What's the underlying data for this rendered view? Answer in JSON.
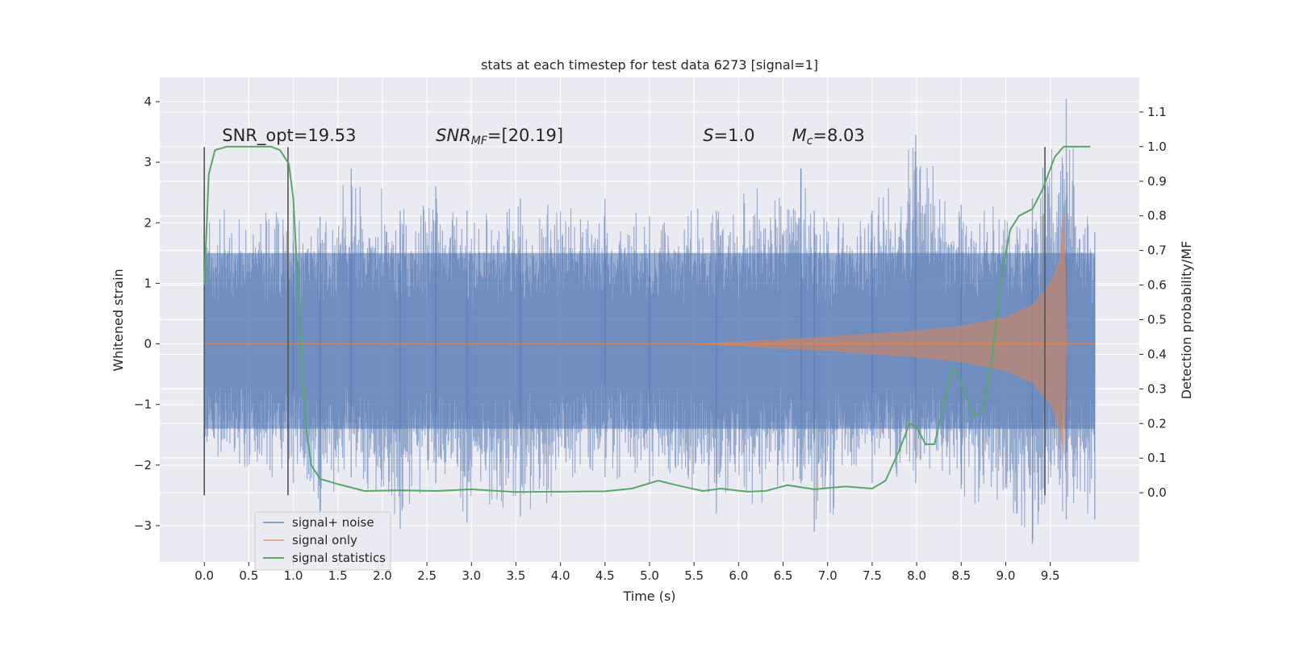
{
  "chart_data": {
    "type": "line",
    "title": "stats at each timestep for test data 6273 [signal=1]",
    "xlabel": "Time (s)",
    "ylabel": "Whitened strain",
    "y2label": "Detection probability/MF",
    "xlim": [
      -0.5,
      10.5
    ],
    "ylim": [
      -3.6,
      4.4
    ],
    "y2lim": [
      -0.2,
      1.2
    ],
    "xticks": [
      0.0,
      0.5,
      1.0,
      1.5,
      2.0,
      2.5,
      3.0,
      3.5,
      4.0,
      4.5,
      5.0,
      5.5,
      6.0,
      6.5,
      7.0,
      7.5,
      8.0,
      8.5,
      9.0,
      9.5
    ],
    "xtick_labels": [
      "0.0",
      "0.5",
      "1.0",
      "1.5",
      "2.0",
      "2.5",
      "3.0",
      "3.5",
      "4.0",
      "4.5",
      "5.0",
      "5.5",
      "6.0",
      "6.5",
      "7.0",
      "7.5",
      "8.0",
      "8.5",
      "9.0",
      "9.5"
    ],
    "yticks": [
      -3,
      -2,
      -1,
      0,
      1,
      2,
      3,
      4
    ],
    "ytick_labels": [
      "−3",
      "−2",
      "−1",
      "0",
      "1",
      "2",
      "3",
      "4"
    ],
    "y2ticks": [
      0.0,
      0.1,
      0.2,
      0.3,
      0.4,
      0.5,
      0.6,
      0.7,
      0.8,
      0.9,
      1.0,
      1.1
    ],
    "y2tick_labels": [
      "0.0",
      "0.1",
      "0.2",
      "0.3",
      "0.4",
      "0.5",
      "0.6",
      "0.7",
      "0.8",
      "0.9",
      "1.0",
      "1.1"
    ],
    "grid": true,
    "legend_position": "lower-left",
    "annotations": [
      {
        "plain": "SNR_opt=19.53",
        "x": 0.2
      },
      {
        "base": "SNR",
        "sub": "MF",
        "italic": true,
        "rest": "=[20.19]",
        "x": 2.6
      },
      {
        "base": "S",
        "sub": "",
        "italic": true,
        "rest": "=1.0",
        "x": 5.6
      },
      {
        "base": "M",
        "sub": "c",
        "italic": true,
        "rest": "=8.03",
        "x": 6.6
      }
    ],
    "annotation_y": 3.35,
    "vlines": [
      {
        "x": 0.0,
        "ymin": -2.5,
        "ymax": 3.25
      },
      {
        "x": 0.94,
        "ymin": -2.5,
        "ymax": 3.25
      },
      {
        "x": 9.44,
        "ymin": -2.5,
        "ymax": 3.25
      }
    ],
    "series": [
      {
        "name": "signal+ noise",
        "color": "#4c72b0",
        "opacity": 0.55,
        "t_start": 0.0,
        "t_end": 10.0,
        "envelope": [
          {
            "x": 0.0,
            "lo": -2.0,
            "hi": 2.1
          },
          {
            "x": 1.0,
            "lo": -2.3,
            "hi": 2.2
          },
          {
            "x": 1.3,
            "lo": -2.9,
            "hi": 2.1
          },
          {
            "x": 1.65,
            "lo": -2.2,
            "hi": 2.9
          },
          {
            "x": 2.2,
            "lo": -3.05,
            "hi": 2.2
          },
          {
            "x": 2.6,
            "lo": -2.3,
            "hi": 2.6
          },
          {
            "x": 2.95,
            "lo": -2.95,
            "hi": 2.2
          },
          {
            "x": 3.55,
            "lo": -2.85,
            "hi": 2.4
          },
          {
            "x": 4.5,
            "lo": -2.2,
            "hi": 2.4
          },
          {
            "x": 5.0,
            "lo": -2.3,
            "hi": 2.1
          },
          {
            "x": 5.75,
            "lo": -2.8,
            "hi": 2.2
          },
          {
            "x": 6.7,
            "lo": -2.3,
            "hi": 2.9
          },
          {
            "x": 6.85,
            "lo": -3.1,
            "hi": 2.2
          },
          {
            "x": 7.5,
            "lo": -2.3,
            "hi": 2.2
          },
          {
            "x": 7.99,
            "lo": -2.3,
            "hi": 3.45
          },
          {
            "x": 8.5,
            "lo": -2.4,
            "hi": 2.3
          },
          {
            "x": 9.3,
            "lo": -3.3,
            "hi": 2.4
          },
          {
            "x": 9.68,
            "lo": -2.9,
            "hi": 4.05
          },
          {
            "x": 10.0,
            "lo": -2.9,
            "hi": 1.85
          }
        ]
      },
      {
        "name": "signal only",
        "color": "#dd8452",
        "opacity": 0.55,
        "points": [
          [
            0.0,
            0.0
          ],
          [
            5.5,
            0.0
          ],
          [
            6.0,
            0.04
          ],
          [
            7.0,
            0.12
          ],
          [
            8.0,
            0.22
          ],
          [
            8.5,
            0.3
          ],
          [
            9.0,
            0.45
          ],
          [
            9.3,
            0.65
          ],
          [
            9.5,
            1.0
          ],
          [
            9.6,
            1.4
          ],
          [
            9.66,
            2.25
          ],
          [
            9.69,
            0.0
          ],
          [
            10.0,
            0.0
          ]
        ]
      },
      {
        "name": "signal statistics",
        "color": "#55a868",
        "axis": "right",
        "points": [
          [
            0.0,
            0.6
          ],
          [
            0.05,
            0.92
          ],
          [
            0.12,
            0.99
          ],
          [
            0.25,
            1.0
          ],
          [
            0.5,
            1.0
          ],
          [
            0.75,
            1.0
          ],
          [
            0.85,
            0.99
          ],
          [
            0.95,
            0.95
          ],
          [
            1.0,
            0.85
          ],
          [
            1.05,
            0.6
          ],
          [
            1.1,
            0.35
          ],
          [
            1.15,
            0.18
          ],
          [
            1.2,
            0.08
          ],
          [
            1.3,
            0.04
          ],
          [
            1.5,
            0.025
          ],
          [
            1.8,
            0.005
          ],
          [
            2.2,
            0.007
          ],
          [
            2.6,
            0.005
          ],
          [
            3.0,
            0.01
          ],
          [
            3.5,
            0.002
          ],
          [
            4.0,
            0.003
          ],
          [
            4.5,
            0.004
          ],
          [
            4.8,
            0.012
          ],
          [
            5.1,
            0.035
          ],
          [
            5.3,
            0.022
          ],
          [
            5.6,
            0.005
          ],
          [
            5.8,
            0.012
          ],
          [
            6.1,
            0.003
          ],
          [
            6.3,
            0.005
          ],
          [
            6.55,
            0.022
          ],
          [
            6.85,
            0.01
          ],
          [
            7.2,
            0.018
          ],
          [
            7.5,
            0.012
          ],
          [
            7.65,
            0.035
          ],
          [
            7.8,
            0.12
          ],
          [
            7.92,
            0.2
          ],
          [
            8.0,
            0.19
          ],
          [
            8.1,
            0.14
          ],
          [
            8.2,
            0.14
          ],
          [
            8.3,
            0.25
          ],
          [
            8.4,
            0.36
          ],
          [
            8.45,
            0.35
          ],
          [
            8.55,
            0.28
          ],
          [
            8.65,
            0.22
          ],
          [
            8.75,
            0.24
          ],
          [
            8.85,
            0.4
          ],
          [
            8.95,
            0.62
          ],
          [
            9.05,
            0.76
          ],
          [
            9.15,
            0.8
          ],
          [
            9.3,
            0.82
          ],
          [
            9.42,
            0.88
          ],
          [
            9.55,
            0.97
          ],
          [
            9.65,
            1.0
          ],
          [
            9.75,
            1.0
          ],
          [
            9.95,
            1.0
          ]
        ]
      }
    ],
    "legend": [
      "signal+ noise",
      "signal only",
      "signal statistics"
    ]
  }
}
